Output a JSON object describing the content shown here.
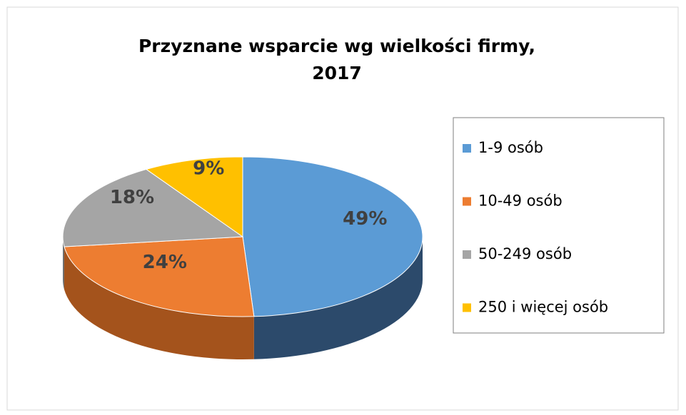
{
  "chart_data": {
    "type": "pie",
    "title": [
      "Przyznane wsparcie wg wielkości firmy,",
      "2017"
    ],
    "categories": [
      "1-9 osób",
      "10-49 osób",
      "50-249 osób",
      "250 i więcej osób"
    ],
    "values": [
      49,
      24,
      18,
      9
    ],
    "value_labels": [
      "49%",
      "24%",
      "18%",
      "9%"
    ],
    "colors": [
      "#5b9bd5",
      "#ed7d31",
      "#a5a5a5",
      "#ffc000"
    ],
    "side_colors": [
      "#2c4a6b",
      "#a4531c",
      "#6f6f6f",
      "#b58800"
    ],
    "legend": "right"
  }
}
